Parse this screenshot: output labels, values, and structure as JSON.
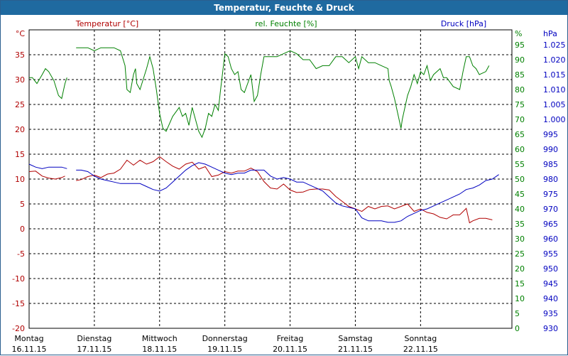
{
  "window": {
    "title": "Temperatur, Feuchte & Druck"
  },
  "chart_data": {
    "type": "line",
    "title": "Temperatur, Feuchte & Druck",
    "grid": true,
    "colors": {
      "temperature": "#b00000",
      "humidity": "#008000",
      "pressure": "#0000c0",
      "grid": "#000000"
    },
    "legend": [
      "Temperatur [°C]",
      "rel. Feuchte [%]",
      "Druck [hPa]"
    ],
    "axes": {
      "temperature": {
        "unit": "°C",
        "ylim": [
          -20,
          40
        ],
        "ticks": [
          -20,
          -15,
          -10,
          -5,
          0,
          5,
          10,
          15,
          20,
          25,
          30,
          35
        ]
      },
      "humidity": {
        "unit": "%",
        "ylim": [
          0,
          100
        ],
        "ticks": [
          0,
          5,
          10,
          15,
          20,
          25,
          30,
          35,
          40,
          45,
          50,
          55,
          60,
          65,
          70,
          75,
          80,
          85,
          90,
          95
        ]
      },
      "pressure": {
        "unit": "hPa",
        "ylim": [
          930,
          1030
        ],
        "ticks": [
          "930",
          "935",
          "940",
          "945",
          "950",
          "955",
          "960",
          "965",
          "970",
          "975",
          "980",
          "985",
          "990",
          "995",
          "1.000",
          "1.005",
          "1.010",
          "1.015",
          "1.020",
          "1.025"
        ]
      }
    },
    "x_labels": [
      {
        "day": "Montag",
        "date": "16.11.15"
      },
      {
        "day": "Dienstag",
        "date": "17.11.15"
      },
      {
        "day": "Mittwoch",
        "date": "18.11.15"
      },
      {
        "day": "Donnerstag",
        "date": "19.11.15"
      },
      {
        "day": "Freitag",
        "date": "20.11.15"
      },
      {
        "day": "Samstag",
        "date": "21.11.15"
      },
      {
        "day": "Sonntag",
        "date": "22.11.15"
      }
    ],
    "xlim": [
      0,
      7.4
    ],
    "series": [
      {
        "name": "Temperatur [°C]",
        "axis": "temperature",
        "segments": [
          [
            [
              0,
              11.5
            ],
            [
              0.1,
              11.6
            ],
            [
              0.2,
              10.6
            ],
            [
              0.3,
              10.2
            ],
            [
              0.4,
              10.0
            ],
            [
              0.5,
              10.3
            ],
            [
              0.55,
              10.6
            ]
          ],
          [
            [
              0.72,
              9.7
            ],
            [
              0.8,
              9.9
            ],
            [
              0.9,
              10.5
            ],
            [
              1.0,
              10.8
            ],
            [
              1.1,
              10.3
            ],
            [
              1.2,
              11.0
            ],
            [
              1.3,
              11.2
            ],
            [
              1.4,
              12.0
            ],
            [
              1.5,
              13.8
            ],
            [
              1.6,
              12.8
            ],
            [
              1.7,
              13.8
            ],
            [
              1.8,
              13.0
            ],
            [
              1.9,
              13.5
            ],
            [
              2.0,
              14.5
            ],
            [
              2.1,
              13.5
            ],
            [
              2.2,
              12.6
            ],
            [
              2.3,
              12.0
            ],
            [
              2.4,
              13.0
            ],
            [
              2.5,
              13.4
            ],
            [
              2.6,
              12.0
            ],
            [
              2.7,
              12.5
            ],
            [
              2.8,
              10.5
            ],
            [
              2.9,
              10.8
            ],
            [
              3.0,
              11.5
            ],
            [
              3.1,
              11.2
            ],
            [
              3.2,
              11.6
            ],
            [
              3.3,
              11.6
            ],
            [
              3.4,
              12.2
            ],
            [
              3.5,
              11.5
            ],
            [
              3.6,
              9.5
            ],
            [
              3.7,
              8.2
            ],
            [
              3.8,
              8.0
            ],
            [
              3.9,
              9.0
            ],
            [
              4.0,
              7.8
            ],
            [
              4.1,
              7.3
            ],
            [
              4.2,
              7.4
            ],
            [
              4.3,
              7.9
            ],
            [
              4.4,
              8.0
            ],
            [
              4.5,
              8.0
            ],
            [
              4.6,
              7.8
            ],
            [
              4.7,
              6.5
            ],
            [
              4.8,
              5.5
            ],
            [
              4.9,
              4.5
            ],
            [
              5.0,
              4.0
            ],
            [
              5.1,
              3.5
            ],
            [
              5.2,
              4.5
            ],
            [
              5.3,
              4.0
            ],
            [
              5.4,
              4.5
            ],
            [
              5.5,
              4.6
            ],
            [
              5.6,
              4.0
            ],
            [
              5.7,
              4.5
            ],
            [
              5.8,
              5.0
            ],
            [
              5.9,
              3.5
            ],
            [
              6.0,
              4.0
            ],
            [
              6.1,
              3.3
            ],
            [
              6.2,
              3.0
            ],
            [
              6.3,
              2.3
            ],
            [
              6.4,
              2.0
            ],
            [
              6.5,
              2.8
            ],
            [
              6.6,
              2.8
            ],
            [
              6.7,
              4.1
            ],
            [
              6.75,
              1.2
            ],
            [
              6.8,
              1.6
            ],
            [
              6.9,
              2.1
            ],
            [
              7.0,
              2.1
            ],
            [
              7.1,
              1.8
            ]
          ]
        ]
      },
      {
        "name": "rel. Feuchte [%]",
        "axis": "humidity",
        "segments": [
          [
            [
              0,
              84
            ],
            [
              0.05,
              84
            ],
            [
              0.12,
              82
            ],
            [
              0.2,
              85
            ],
            [
              0.25,
              87
            ],
            [
              0.3,
              86
            ],
            [
              0.38,
              83
            ],
            [
              0.45,
              78
            ],
            [
              0.5,
              77
            ],
            [
              0.55,
              82
            ],
            [
              0.58,
              84
            ]
          ],
          [
            [
              0.72,
              94
            ],
            [
              0.8,
              94
            ],
            [
              0.9,
              94
            ],
            [
              1.0,
              93
            ],
            [
              1.1,
              94
            ],
            [
              1.2,
              94
            ],
            [
              1.3,
              94
            ],
            [
              1.4,
              93
            ],
            [
              1.47,
              88
            ],
            [
              1.5,
              80
            ],
            [
              1.55,
              79
            ],
            [
              1.6,
              85
            ],
            [
              1.63,
              87
            ],
            [
              1.65,
              82
            ],
            [
              1.7,
              80
            ],
            [
              1.8,
              87
            ],
            [
              1.85,
              91
            ],
            [
              1.9,
              87
            ],
            [
              1.95,
              80
            ],
            [
              2.0,
              72
            ],
            [
              2.05,
              67
            ],
            [
              2.1,
              66
            ],
            [
              2.2,
              71
            ],
            [
              2.3,
              74
            ],
            [
              2.35,
              71
            ],
            [
              2.4,
              72
            ],
            [
              2.45,
              68
            ],
            [
              2.5,
              74
            ],
            [
              2.55,
              70
            ],
            [
              2.6,
              66
            ],
            [
              2.65,
              64
            ],
            [
              2.7,
              67
            ],
            [
              2.75,
              72
            ],
            [
              2.8,
              71
            ],
            [
              2.85,
              75
            ],
            [
              2.9,
              73
            ],
            [
              2.93,
              79
            ],
            [
              3.0,
              92
            ],
            [
              3.05,
              91
            ],
            [
              3.1,
              87
            ],
            [
              3.15,
              85
            ],
            [
              3.2,
              86
            ],
            [
              3.25,
              80
            ],
            [
              3.3,
              79
            ],
            [
              3.4,
              85
            ],
            [
              3.45,
              76
            ],
            [
              3.5,
              78
            ],
            [
              3.55,
              85
            ],
            [
              3.6,
              91
            ],
            [
              3.7,
              91
            ],
            [
              3.8,
              91
            ],
            [
              3.9,
              92
            ],
            [
              4.0,
              93
            ],
            [
              4.1,
              92
            ],
            [
              4.2,
              90
            ],
            [
              4.3,
              90
            ],
            [
              4.4,
              87
            ],
            [
              4.5,
              88
            ],
            [
              4.6,
              88
            ],
            [
              4.7,
              91
            ],
            [
              4.8,
              91
            ],
            [
              4.9,
              89
            ],
            [
              5.0,
              91
            ],
            [
              5.05,
              87
            ],
            [
              5.1,
              91
            ],
            [
              5.2,
              89
            ],
            [
              5.3,
              89
            ],
            [
              5.4,
              88
            ],
            [
              5.5,
              87
            ],
            [
              5.52,
              83
            ],
            [
              5.55,
              81
            ],
            [
              5.6,
              77
            ],
            [
              5.65,
              72
            ],
            [
              5.7,
              67
            ],
            [
              5.72,
              70
            ],
            [
              5.8,
              78
            ],
            [
              5.85,
              81
            ],
            [
              5.9,
              85
            ],
            [
              5.95,
              82
            ],
            [
              6.0,
              86
            ],
            [
              6.05,
              85
            ],
            [
              6.1,
              88
            ],
            [
              6.15,
              83
            ],
            [
              6.2,
              85
            ],
            [
              6.3,
              87
            ],
            [
              6.35,
              84
            ],
            [
              6.4,
              84
            ],
            [
              6.5,
              81
            ],
            [
              6.6,
              80
            ],
            [
              6.65,
              86
            ],
            [
              6.7,
              91
            ],
            [
              6.75,
              91
            ],
            [
              6.8,
              88
            ],
            [
              6.85,
              87
            ],
            [
              6.9,
              85
            ],
            [
              7.0,
              86
            ],
            [
              7.05,
              88
            ]
          ]
        ]
      },
      {
        "name": "Druck [hPa]",
        "axis": "pressure",
        "segments": [
          [
            [
              0,
              985
            ],
            [
              0.1,
              984
            ],
            [
              0.2,
              983.5
            ],
            [
              0.3,
              984
            ],
            [
              0.4,
              984
            ],
            [
              0.5,
              984
            ],
            [
              0.58,
              983.5
            ]
          ],
          [
            [
              0.72,
              983
            ],
            [
              0.8,
              983
            ],
            [
              0.9,
              982.5
            ],
            [
              1.0,
              981
            ],
            [
              1.1,
              980
            ],
            [
              1.2,
              979.5
            ],
            [
              1.3,
              979
            ],
            [
              1.4,
              978.5
            ],
            [
              1.5,
              978.5
            ],
            [
              1.6,
              978.5
            ],
            [
              1.7,
              978.5
            ],
            [
              1.8,
              977.5
            ],
            [
              1.9,
              976.5
            ],
            [
              2.0,
              976
            ],
            [
              2.1,
              977
            ],
            [
              2.2,
              979
            ],
            [
              2.3,
              981
            ],
            [
              2.4,
              983
            ],
            [
              2.5,
              984.5
            ],
            [
              2.6,
              985.5
            ],
            [
              2.7,
              985
            ],
            [
              2.8,
              984
            ],
            [
              2.9,
              983
            ],
            [
              3.0,
              982
            ],
            [
              3.1,
              981.5
            ],
            [
              3.2,
              982
            ],
            [
              3.3,
              982
            ],
            [
              3.4,
              983
            ],
            [
              3.5,
              983
            ],
            [
              3.6,
              983
            ],
            [
              3.7,
              981
            ],
            [
              3.8,
              980
            ],
            [
              3.9,
              980.5
            ],
            [
              4.0,
              980
            ],
            [
              4.1,
              979
            ],
            [
              4.2,
              979
            ],
            [
              4.3,
              978
            ],
            [
              4.4,
              977
            ],
            [
              4.5,
              976
            ],
            [
              4.6,
              974
            ],
            [
              4.7,
              972
            ],
            [
              4.8,
              971
            ],
            [
              4.9,
              970.5
            ],
            [
              5.0,
              970
            ],
            [
              5.1,
              967
            ],
            [
              5.2,
              966
            ],
            [
              5.3,
              966
            ],
            [
              5.4,
              966
            ],
            [
              5.5,
              965.5
            ],
            [
              5.6,
              965.5
            ],
            [
              5.7,
              966
            ],
            [
              5.8,
              967.5
            ],
            [
              5.9,
              968.5
            ],
            [
              6.0,
              969.5
            ],
            [
              6.1,
              970
            ],
            [
              6.2,
              971
            ],
            [
              6.3,
              972
            ],
            [
              6.4,
              973
            ],
            [
              6.5,
              974
            ],
            [
              6.6,
              975
            ],
            [
              6.7,
              976.5
            ],
            [
              6.8,
              977
            ],
            [
              6.9,
              978
            ],
            [
              7.0,
              979.5
            ],
            [
              7.1,
              980
            ],
            [
              7.2,
              981.5
            ]
          ]
        ]
      }
    ]
  }
}
